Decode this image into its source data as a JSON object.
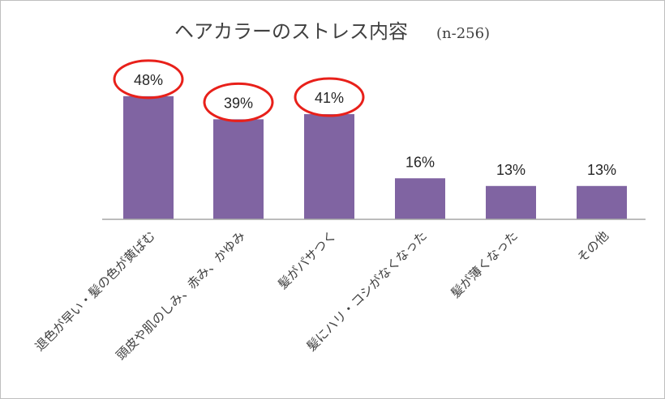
{
  "chart_data": {
    "type": "bar",
    "title": "ヘアカラーのストレス内容",
    "subtitle": "(n-256)",
    "categories": [
      "退色が早い・髪の色が黄ばむ",
      "頭皮や肌のしみ、赤み、かゆみ",
      "髪がパサつく",
      "髪にハリ・コシがなくなった",
      "髪が薄くなった",
      "その他"
    ],
    "values": [
      48,
      39,
      41,
      16,
      13,
      13
    ],
    "value_labels": [
      "48%",
      "39%",
      "41%",
      "16%",
      "13%",
      "13%"
    ],
    "highlighted_indices": [
      0,
      1,
      2
    ],
    "ylim": [
      0,
      100
    ],
    "xlabel": "",
    "ylabel": "",
    "grid": false,
    "legend": "none"
  },
  "colors": {
    "bar": "#8064a2",
    "highlight_ring": "#e8201a",
    "axis": "#a6a6a6",
    "text": "#404040"
  }
}
